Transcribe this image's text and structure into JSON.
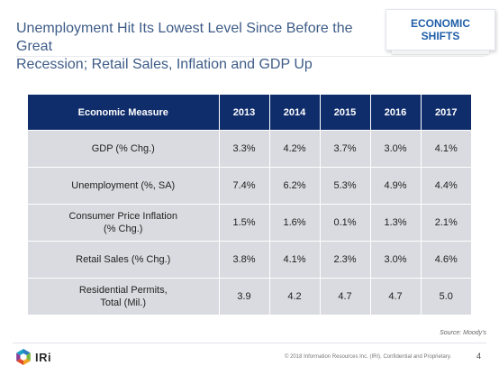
{
  "slide": {
    "title_lines": [
      "Unemployment Hit Its Lowest Level Since Before the Great",
      "Recession; Retail Sales, Inflation and GDP Up"
    ],
    "section_tab": [
      "ECONOMIC",
      "SHIFTS"
    ],
    "source": "Source: Moody's",
    "footer": "© 2018 Information Resources Inc. (IRI). Confidential and Proprietary.",
    "page_number": "4",
    "logo_text": "IRi"
  },
  "table": {
    "headers": [
      "Economic Measure",
      "2013",
      "2014",
      "2015",
      "2016",
      "2017"
    ],
    "rows": [
      {
        "measure": [
          "GDP (% Chg.)"
        ],
        "values": [
          "3.3%",
          "4.2%",
          "3.7%",
          "3.0%",
          "4.1%"
        ]
      },
      {
        "measure": [
          "Unemployment (%, SA)"
        ],
        "values": [
          "7.4%",
          "6.2%",
          "5.3%",
          "4.9%",
          "4.4%"
        ]
      },
      {
        "measure": [
          "Consumer Price Inflation",
          "(% Chg.)"
        ],
        "values": [
          "1.5%",
          "1.6%",
          "0.1%",
          "1.3%",
          "2.1%"
        ]
      },
      {
        "measure": [
          "Retail Sales (% Chg.)"
        ],
        "values": [
          "3.8%",
          "4.1%",
          "2.3%",
          "3.0%",
          "4.6%"
        ]
      },
      {
        "measure": [
          "Residential Permits,",
          "Total (Mil.)"
        ],
        "values": [
          "3.9",
          "4.2",
          "4.7",
          "4.7",
          "5.0"
        ]
      }
    ]
  },
  "colors": {
    "title": "#3e5c87",
    "header_bg": "#0f2d6b",
    "cell_bg": "#d9dbe0",
    "tab_text": "#1f5fa8"
  },
  "icons": {
    "logo": "iri-logo-icon"
  }
}
